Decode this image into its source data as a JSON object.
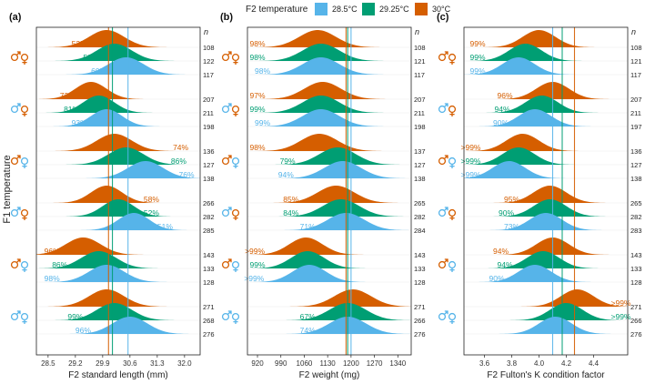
{
  "legend": {
    "title": "F2 temperature",
    "entries": [
      {
        "label": "28.5°C",
        "color": "#56B4E9"
      },
      {
        "label": "29.25°C",
        "color": "#009E73"
      },
      {
        "label": "30°C",
        "color": "#D55E00"
      }
    ]
  },
  "y_axis_title": "F1 temperature",
  "n_header": "n",
  "chart_data": [
    {
      "type": "ridgeline",
      "panel": "(a)",
      "xlabel": "F2 standard length (mm)",
      "xlim": [
        28.2,
        32.4
      ],
      "ticks": [
        28.5,
        29.2,
        29.9,
        30.6,
        31.3,
        32.0
      ],
      "tick_labels": [
        "28.5",
        "29.2",
        "29.9",
        "30.6",
        "31.3",
        "32.0"
      ],
      "vlines": [
        {
          "x": 30.05,
          "series": 2
        },
        {
          "x": 30.15,
          "series": 1
        },
        {
          "x": 30.55,
          "series": 0
        }
      ],
      "groups": [
        {
          "rows": [
            {
              "series": 2,
              "mean": 30.0,
              "sd": 0.45,
              "label": "52%",
              "label_x": 29.3,
              "n": "108"
            },
            {
              "series": 1,
              "mean": 30.2,
              "sd": 0.45,
              "label": "53%",
              "label_x": 29.6,
              "n": "122"
            },
            {
              "series": 0,
              "mean": 30.5,
              "sd": 0.45,
              "label": "60%",
              "label_x": 29.8,
              "n": "117"
            }
          ]
        },
        {
          "rows": [
            {
              "series": 2,
              "mean": 29.6,
              "sd": 0.4,
              "label": "73%",
              "label_x": 29.0,
              "n": "207"
            },
            {
              "series": 1,
              "mean": 29.8,
              "sd": 0.4,
              "label": "81%",
              "label_x": 29.1,
              "n": "211"
            },
            {
              "series": 0,
              "mean": 30.0,
              "sd": 0.4,
              "label": "93%",
              "label_x": 29.3,
              "n": "198"
            }
          ]
        },
        {
          "rows": [
            {
              "series": 2,
              "mean": 30.2,
              "sd": 0.45,
              "label": "74%",
              "label_x": 31.9,
              "n": "136"
            },
            {
              "series": 1,
              "mean": 30.5,
              "sd": 0.45,
              "label": "86%",
              "label_x": 31.85,
              "n": "127"
            },
            {
              "series": 0,
              "mean": 31.0,
              "sd": 0.45,
              "label": "76%",
              "label_x": 32.05,
              "n": "138"
            }
          ]
        },
        {
          "rows": [
            {
              "series": 2,
              "mean": 30.0,
              "sd": 0.4,
              "label": "58%",
              "label_x": 31.15,
              "n": "266"
            },
            {
              "series": 1,
              "mean": 30.3,
              "sd": 0.4,
              "label": "52%",
              "label_x": 31.15,
              "n": "282"
            },
            {
              "series": 0,
              "mean": 30.7,
              "sd": 0.4,
              "label": "51%",
              "label_x": 31.5,
              "n": "285"
            }
          ]
        },
        {
          "rows": [
            {
              "series": 2,
              "mean": 29.4,
              "sd": 0.45,
              "label": "96%",
              "label_x": 28.6,
              "n": "143"
            },
            {
              "series": 1,
              "mean": 29.8,
              "sd": 0.45,
              "label": "86%",
              "label_x": 28.8,
              "n": "133"
            },
            {
              "series": 0,
              "mean": 30.0,
              "sd": 0.45,
              "label": "98%",
              "label_x": 28.6,
              "n": "128"
            }
          ]
        },
        {
          "rows": [
            {
              "series": 2,
              "mean": 30.0,
              "sd": 0.45,
              "label": "",
              "label_x": 0,
              "n": "271"
            },
            {
              "series": 1,
              "mean": 30.2,
              "sd": 0.45,
              "label": "99%",
              "label_x": 29.2,
              "n": "268"
            },
            {
              "series": 0,
              "mean": 30.6,
              "sd": 0.45,
              "label": "96%",
              "label_x": 29.4,
              "n": "276"
            }
          ]
        }
      ]
    },
    {
      "type": "ridgeline",
      "panel": "(b)",
      "xlabel": "F2 weight (mg)",
      "xlim": [
        890,
        1380
      ],
      "ticks": [
        920,
        990,
        1060,
        1130,
        1200,
        1270,
        1340
      ],
      "tick_labels": [
        "920",
        "990",
        "1060",
        "1130",
        "1200",
        "1270",
        "1340"
      ],
      "vlines": [
        {
          "x": 1185,
          "series": 2
        },
        {
          "x": 1190,
          "series": 1
        },
        {
          "x": 1200,
          "series": 0
        }
      ],
      "groups": [
        {
          "rows": [
            {
              "series": 2,
              "mean": 1100,
              "sd": 55,
              "label": "98%",
              "label_x": 920,
              "n": "108"
            },
            {
              "series": 1,
              "mean": 1110,
              "sd": 55,
              "label": "98%",
              "label_x": 920,
              "n": "121"
            },
            {
              "series": 0,
              "mean": 1110,
              "sd": 55,
              "label": "98%",
              "label_x": 935,
              "n": "117"
            }
          ]
        },
        {
          "rows": [
            {
              "series": 2,
              "mean": 1115,
              "sd": 55,
              "label": "97%",
              "label_x": 920,
              "n": "207"
            },
            {
              "series": 1,
              "mean": 1110,
              "sd": 55,
              "label": "99%",
              "label_x": 920,
              "n": "211"
            },
            {
              "series": 0,
              "mean": 1110,
              "sd": 55,
              "label": "99%",
              "label_x": 935,
              "n": "198"
            }
          ]
        },
        {
          "rows": [
            {
              "series": 2,
              "mean": 1105,
              "sd": 55,
              "label": "98%",
              "label_x": 920,
              "n": "137"
            },
            {
              "series": 1,
              "mean": 1160,
              "sd": 55,
              "label": "79%",
              "label_x": 1010,
              "n": "127"
            },
            {
              "series": 0,
              "mean": 1175,
              "sd": 55,
              "label": "94%",
              "label_x": 1005,
              "n": "138"
            }
          ]
        },
        {
          "rows": [
            {
              "series": 2,
              "mean": 1155,
              "sd": 55,
              "label": "85%",
              "label_x": 1020,
              "n": "265"
            },
            {
              "series": 1,
              "mean": 1170,
              "sd": 55,
              "label": "84%",
              "label_x": 1020,
              "n": "282"
            },
            {
              "series": 0,
              "mean": 1185,
              "sd": 55,
              "label": "71%",
              "label_x": 1070,
              "n": "284"
            }
          ]
        },
        {
          "rows": [
            {
              "series": 2,
              "mean": 1065,
              "sd": 50,
              "label": ">99%",
              "label_x": 912,
              "n": "143"
            },
            {
              "series": 1,
              "mean": 1070,
              "sd": 50,
              "label": "99%",
              "label_x": 920,
              "n": "133"
            },
            {
              "series": 0,
              "mean": 1075,
              "sd": 50,
              "label": ">99%",
              "label_x": 910,
              "n": "128"
            }
          ]
        },
        {
          "rows": [
            {
              "series": 2,
              "mean": 1205,
              "sd": 55,
              "label": "",
              "label_x": 0,
              "n": "271"
            },
            {
              "series": 1,
              "mean": 1190,
              "sd": 55,
              "label": "67%",
              "label_x": 1070,
              "n": "266"
            },
            {
              "series": 0,
              "mean": 1190,
              "sd": 55,
              "label": "74%",
              "label_x": 1070,
              "n": "276"
            }
          ]
        }
      ]
    },
    {
      "type": "ridgeline",
      "panel": "(c)",
      "xlabel": "F2 Fulton's K condition factor",
      "xlim": [
        3.45,
        4.65
      ],
      "ticks": [
        3.6,
        3.8,
        4.0,
        4.2,
        4.4
      ],
      "tick_labels": [
        "3.6",
        "3.8",
        "4.0",
        "4.2",
        "4.4"
      ],
      "vlines": [
        {
          "x": 4.1,
          "series": 0
        },
        {
          "x": 4.17,
          "series": 1
        },
        {
          "x": 4.26,
          "series": 2
        }
      ],
      "groups": [
        {
          "rows": [
            {
              "series": 2,
              "mean": 4.0,
              "sd": 0.12,
              "label": "99%",
              "label_x": 3.55,
              "n": "108"
            },
            {
              "series": 1,
              "mean": 3.9,
              "sd": 0.12,
              "label": "99%",
              "label_x": 3.55,
              "n": "121"
            },
            {
              "series": 0,
              "mean": 3.85,
              "sd": 0.12,
              "label": "99%",
              "label_x": 3.55,
              "n": "117"
            }
          ]
        },
        {
          "rows": [
            {
              "series": 2,
              "mean": 4.1,
              "sd": 0.12,
              "label": "96%",
              "label_x": 3.75,
              "n": "207"
            },
            {
              "series": 1,
              "mean": 4.02,
              "sd": 0.12,
              "label": "94%",
              "label_x": 3.73,
              "n": "211"
            },
            {
              "series": 0,
              "mean": 3.97,
              "sd": 0.12,
              "label": "90%",
              "label_x": 3.72,
              "n": "197"
            }
          ]
        },
        {
          "rows": [
            {
              "series": 2,
              "mean": 3.88,
              "sd": 0.12,
              "label": ">99%",
              "label_x": 3.5,
              "n": "136"
            },
            {
              "series": 1,
              "mean": 3.85,
              "sd": 0.12,
              "label": ">99%",
              "label_x": 3.5,
              "n": "127"
            },
            {
              "series": 0,
              "mean": 3.78,
              "sd": 0.12,
              "label": ">99%",
              "label_x": 3.5,
              "n": "138"
            }
          ]
        },
        {
          "rows": [
            {
              "series": 2,
              "mean": 4.08,
              "sd": 0.12,
              "label": "95%",
              "label_x": 3.8,
              "n": "265"
            },
            {
              "series": 1,
              "mean": 4.08,
              "sd": 0.12,
              "label": "90%",
              "label_x": 3.76,
              "n": "282"
            },
            {
              "series": 0,
              "mean": 4.05,
              "sd": 0.12,
              "label": "73%",
              "label_x": 3.8,
              "n": "283"
            }
          ]
        },
        {
          "rows": [
            {
              "series": 2,
              "mean": 4.1,
              "sd": 0.12,
              "label": "94%",
              "label_x": 3.72,
              "n": "143"
            },
            {
              "series": 1,
              "mean": 4.03,
              "sd": 0.12,
              "label": "94%",
              "label_x": 3.75,
              "n": "133"
            },
            {
              "series": 0,
              "mean": 3.97,
              "sd": 0.12,
              "label": "90%",
              "label_x": 3.69,
              "n": "128"
            }
          ]
        },
        {
          "rows": [
            {
              "series": 2,
              "mean": 4.28,
              "sd": 0.12,
              "label": ">99%",
              "label_x": 4.6,
              "n": "271"
            },
            {
              "series": 1,
              "mean": 4.2,
              "sd": 0.12,
              "label": ">99%",
              "label_x": 4.6,
              "n": "266"
            },
            {
              "series": 0,
              "mean": 4.12,
              "sd": 0.12,
              "label": "",
              "label_x": 0,
              "n": "276"
            }
          ]
        }
      ]
    }
  ],
  "icon_groups": [
    {
      "parent_a": "male",
      "color_a": "#D55E00",
      "parent_b": "female",
      "color_b": "#D55E00"
    },
    {
      "parent_a": "male",
      "color_a": "#56B4E9",
      "parent_b": "female",
      "color_b": "#D55E00"
    },
    {
      "parent_a": "male",
      "color_a": "#D55E00",
      "parent_b": "female",
      "color_b": "#56B4E9"
    },
    {
      "parent_a": "male",
      "color_a": "#56B4E9",
      "parent_b": "female",
      "color_b": "#D55E00"
    },
    {
      "parent_a": "male",
      "color_a": "#D55E00",
      "parent_b": "female",
      "color_b": "#56B4E9"
    },
    {
      "parent_a": "male",
      "color_a": "#56B4E9",
      "parent_b": "female",
      "color_b": "#56B4E9"
    }
  ]
}
